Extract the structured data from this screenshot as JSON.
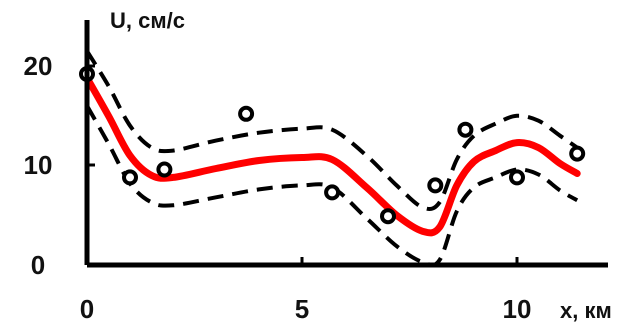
{
  "chart_data": {
    "type": "scatter",
    "title": "",
    "xlabel": "x, км",
    "ylabel": "U, см/с",
    "xlim": [
      0,
      12
    ],
    "ylim": [
      0,
      24
    ],
    "x_ticks": [
      "0",
      "5",
      "10"
    ],
    "y_ticks": [
      "0",
      "10",
      "20"
    ],
    "grid": false,
    "legend": "none",
    "colors": {
      "fit": "#ff0000",
      "band": "#000000",
      "points": "#000000",
      "axes": "#000000"
    },
    "series": [
      {
        "type": "scatter",
        "x": [
          0,
          1.0,
          1.8,
          3.7,
          5.7,
          7.0,
          8.1,
          8.8,
          10.0,
          11.4
        ],
        "y": [
          19.2,
          8.8,
          9.6,
          15.2,
          7.3,
          4.9,
          8.0,
          13.6,
          8.8,
          11.2
        ]
      },
      {
        "type": "line",
        "style": "solid",
        "x": [
          0,
          0.5,
          1.0,
          1.5,
          2.0,
          3.0,
          4.0,
          5.0,
          5.7,
          6.5,
          7.2,
          7.8,
          8.2,
          8.6,
          9.0,
          9.5,
          10.0,
          10.5,
          11.0,
          11.4
        ],
        "y": [
          18.8,
          15.0,
          11.0,
          9.0,
          8.8,
          9.7,
          10.5,
          10.8,
          10.6,
          7.8,
          5.0,
          3.4,
          3.8,
          8.0,
          10.4,
          11.5,
          12.3,
          11.8,
          10.2,
          9.2
        ]
      },
      {
        "type": "line",
        "style": "dashed",
        "x": [
          0,
          0.5,
          1.0,
          1.5,
          2.0,
          3.0,
          4.0,
          5.0,
          5.7,
          6.5,
          7.2,
          7.8,
          8.2,
          8.6,
          9.0,
          9.5,
          10.0,
          10.5,
          11.0,
          11.4
        ],
        "y": [
          21.5,
          18.0,
          14.0,
          11.8,
          11.5,
          12.5,
          13.3,
          13.7,
          13.6,
          11.0,
          8.0,
          5.8,
          6.3,
          10.6,
          13.0,
          14.2,
          15.0,
          14.5,
          13.0,
          11.8
        ]
      },
      {
        "type": "line",
        "style": "dashed",
        "x": [
          0,
          0.5,
          1.0,
          1.5,
          2.0,
          3.0,
          4.0,
          5.0,
          5.7,
          6.5,
          7.2,
          7.8,
          8.2,
          8.6,
          9.0,
          9.5,
          10.0,
          10.5,
          11.0,
          11.4
        ],
        "y": [
          16.0,
          12.2,
          8.2,
          6.3,
          6.0,
          6.8,
          7.6,
          8.0,
          7.8,
          4.7,
          1.9,
          0.3,
          0.5,
          5.4,
          7.8,
          8.8,
          9.6,
          9.1,
          7.5,
          6.5
        ]
      }
    ]
  }
}
